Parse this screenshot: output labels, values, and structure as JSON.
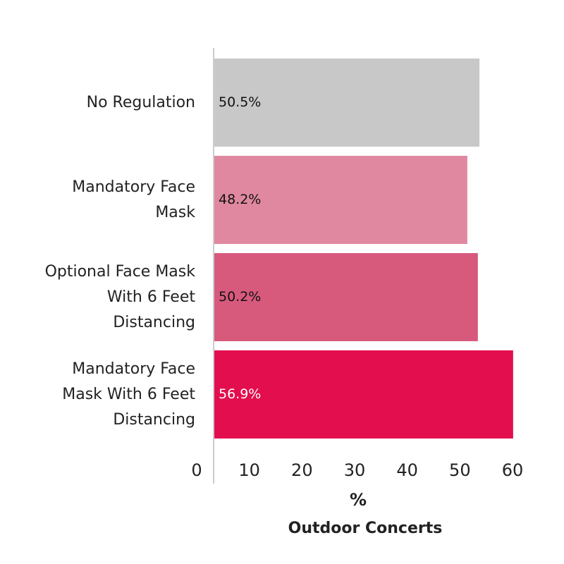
{
  "chart_data": {
    "type": "bar",
    "orientation": "horizontal",
    "categories": [
      "No Regulation",
      "Mandatory Face Mask",
      "Optional Face Mask With 6 Feet Distancing",
      "Mandatory Face Mask With 6 Feet Distancing"
    ],
    "values": [
      50.5,
      48.2,
      50.2,
      56.9
    ],
    "value_labels": [
      "50.5%",
      "48.2%",
      "50.2%",
      "56.9%"
    ],
    "colors": [
      "#c8c8c8",
      "#e088a0",
      "#d75a7d",
      "#e30e4e"
    ],
    "xlim": [
      0,
      60
    ],
    "xticks": [
      0,
      10,
      20,
      30,
      40,
      50,
      60
    ],
    "xlabel": "%",
    "caption": "Outdoor Concerts"
  }
}
